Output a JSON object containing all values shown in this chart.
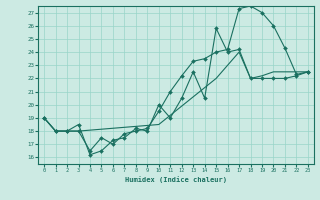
{
  "xlabel": "Humidex (Indice chaleur)",
  "xlim": [
    -0.5,
    23.5
  ],
  "ylim": [
    15.5,
    27.5
  ],
  "yticks": [
    16,
    17,
    18,
    19,
    20,
    21,
    22,
    23,
    24,
    25,
    26,
    27
  ],
  "xticks": [
    0,
    1,
    2,
    3,
    4,
    5,
    6,
    7,
    8,
    9,
    10,
    11,
    12,
    13,
    14,
    15,
    16,
    17,
    18,
    19,
    20,
    21,
    22,
    23
  ],
  "bg_color": "#cceae3",
  "grid_color": "#99d5c9",
  "line_color": "#1a7060",
  "line1_x": [
    0,
    1,
    2,
    3,
    4,
    5,
    6,
    7,
    8,
    9,
    10,
    11,
    12,
    13,
    14,
    15,
    16,
    17,
    18,
    19,
    20,
    21,
    22,
    23
  ],
  "line1_y": [
    19,
    18,
    18,
    18,
    16.5,
    17.5,
    17.0,
    17.8,
    18.0,
    18.2,
    19.5,
    21.0,
    22.2,
    23.3,
    23.5,
    24.0,
    24.2,
    27.3,
    27.5,
    27.0,
    26.0,
    24.3,
    22.3,
    22.5
  ],
  "line2_x": [
    0,
    1,
    2,
    3,
    4,
    5,
    6,
    7,
    8,
    9,
    10,
    11,
    12,
    13,
    14,
    15,
    16,
    17,
    18,
    19,
    20,
    21,
    22,
    23
  ],
  "line2_y": [
    19,
    18,
    18,
    18.5,
    16.2,
    16.5,
    17.3,
    17.5,
    18.2,
    18.0,
    20.0,
    19.0,
    20.5,
    22.5,
    20.5,
    25.8,
    24.0,
    24.2,
    22.0,
    22.0,
    22.0,
    22.0,
    22.2,
    22.5
  ],
  "line3_x": [
    0,
    1,
    2,
    3,
    10,
    15,
    17,
    18,
    19,
    20,
    21,
    22,
    23
  ],
  "line3_y": [
    19,
    18,
    18,
    18,
    18.5,
    22.0,
    24.0,
    22.0,
    22.2,
    22.5,
    22.5,
    22.5,
    22.5
  ]
}
